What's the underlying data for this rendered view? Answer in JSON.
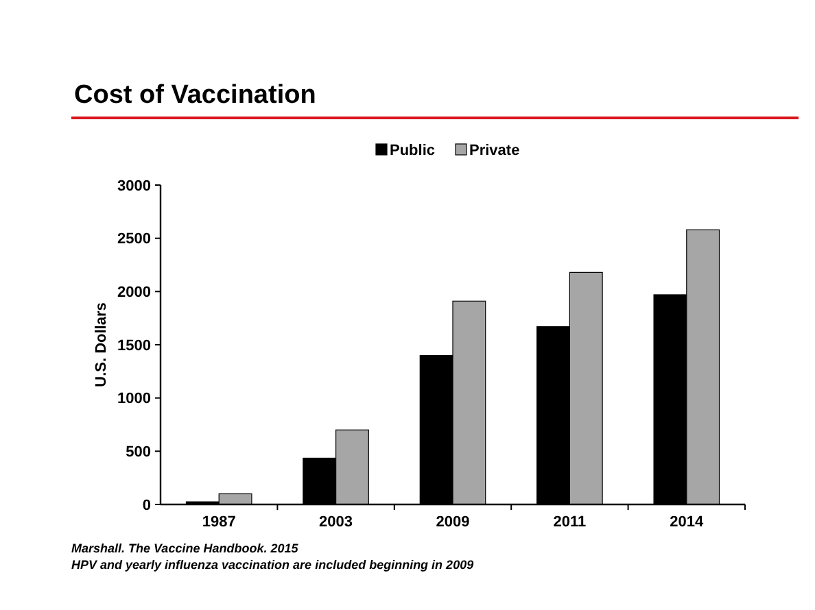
{
  "chart_data": {
    "type": "bar",
    "title": "Cost of Vaccination",
    "ylabel": "U.S. Dollars",
    "categories": [
      "1987",
      "2003",
      "2009",
      "2011",
      "2014"
    ],
    "series": [
      {
        "name": "Public",
        "color": "#000000",
        "values": [
          25,
          435,
          1400,
          1670,
          1970
        ]
      },
      {
        "name": "Private",
        "color": "#a6a6a6",
        "values": [
          100,
          700,
          1910,
          2180,
          2580
        ]
      }
    ],
    "ylim": [
      0,
      3000
    ],
    "yticks": [
      0,
      500,
      1000,
      1500,
      2000,
      2500,
      3000
    ],
    "grid": false,
    "legend": "top",
    "annotations": [
      "Marshall. The Vaccine Handbook. 2015",
      "HPV and yearly influenza vaccination are included beginning in 2009"
    ]
  }
}
